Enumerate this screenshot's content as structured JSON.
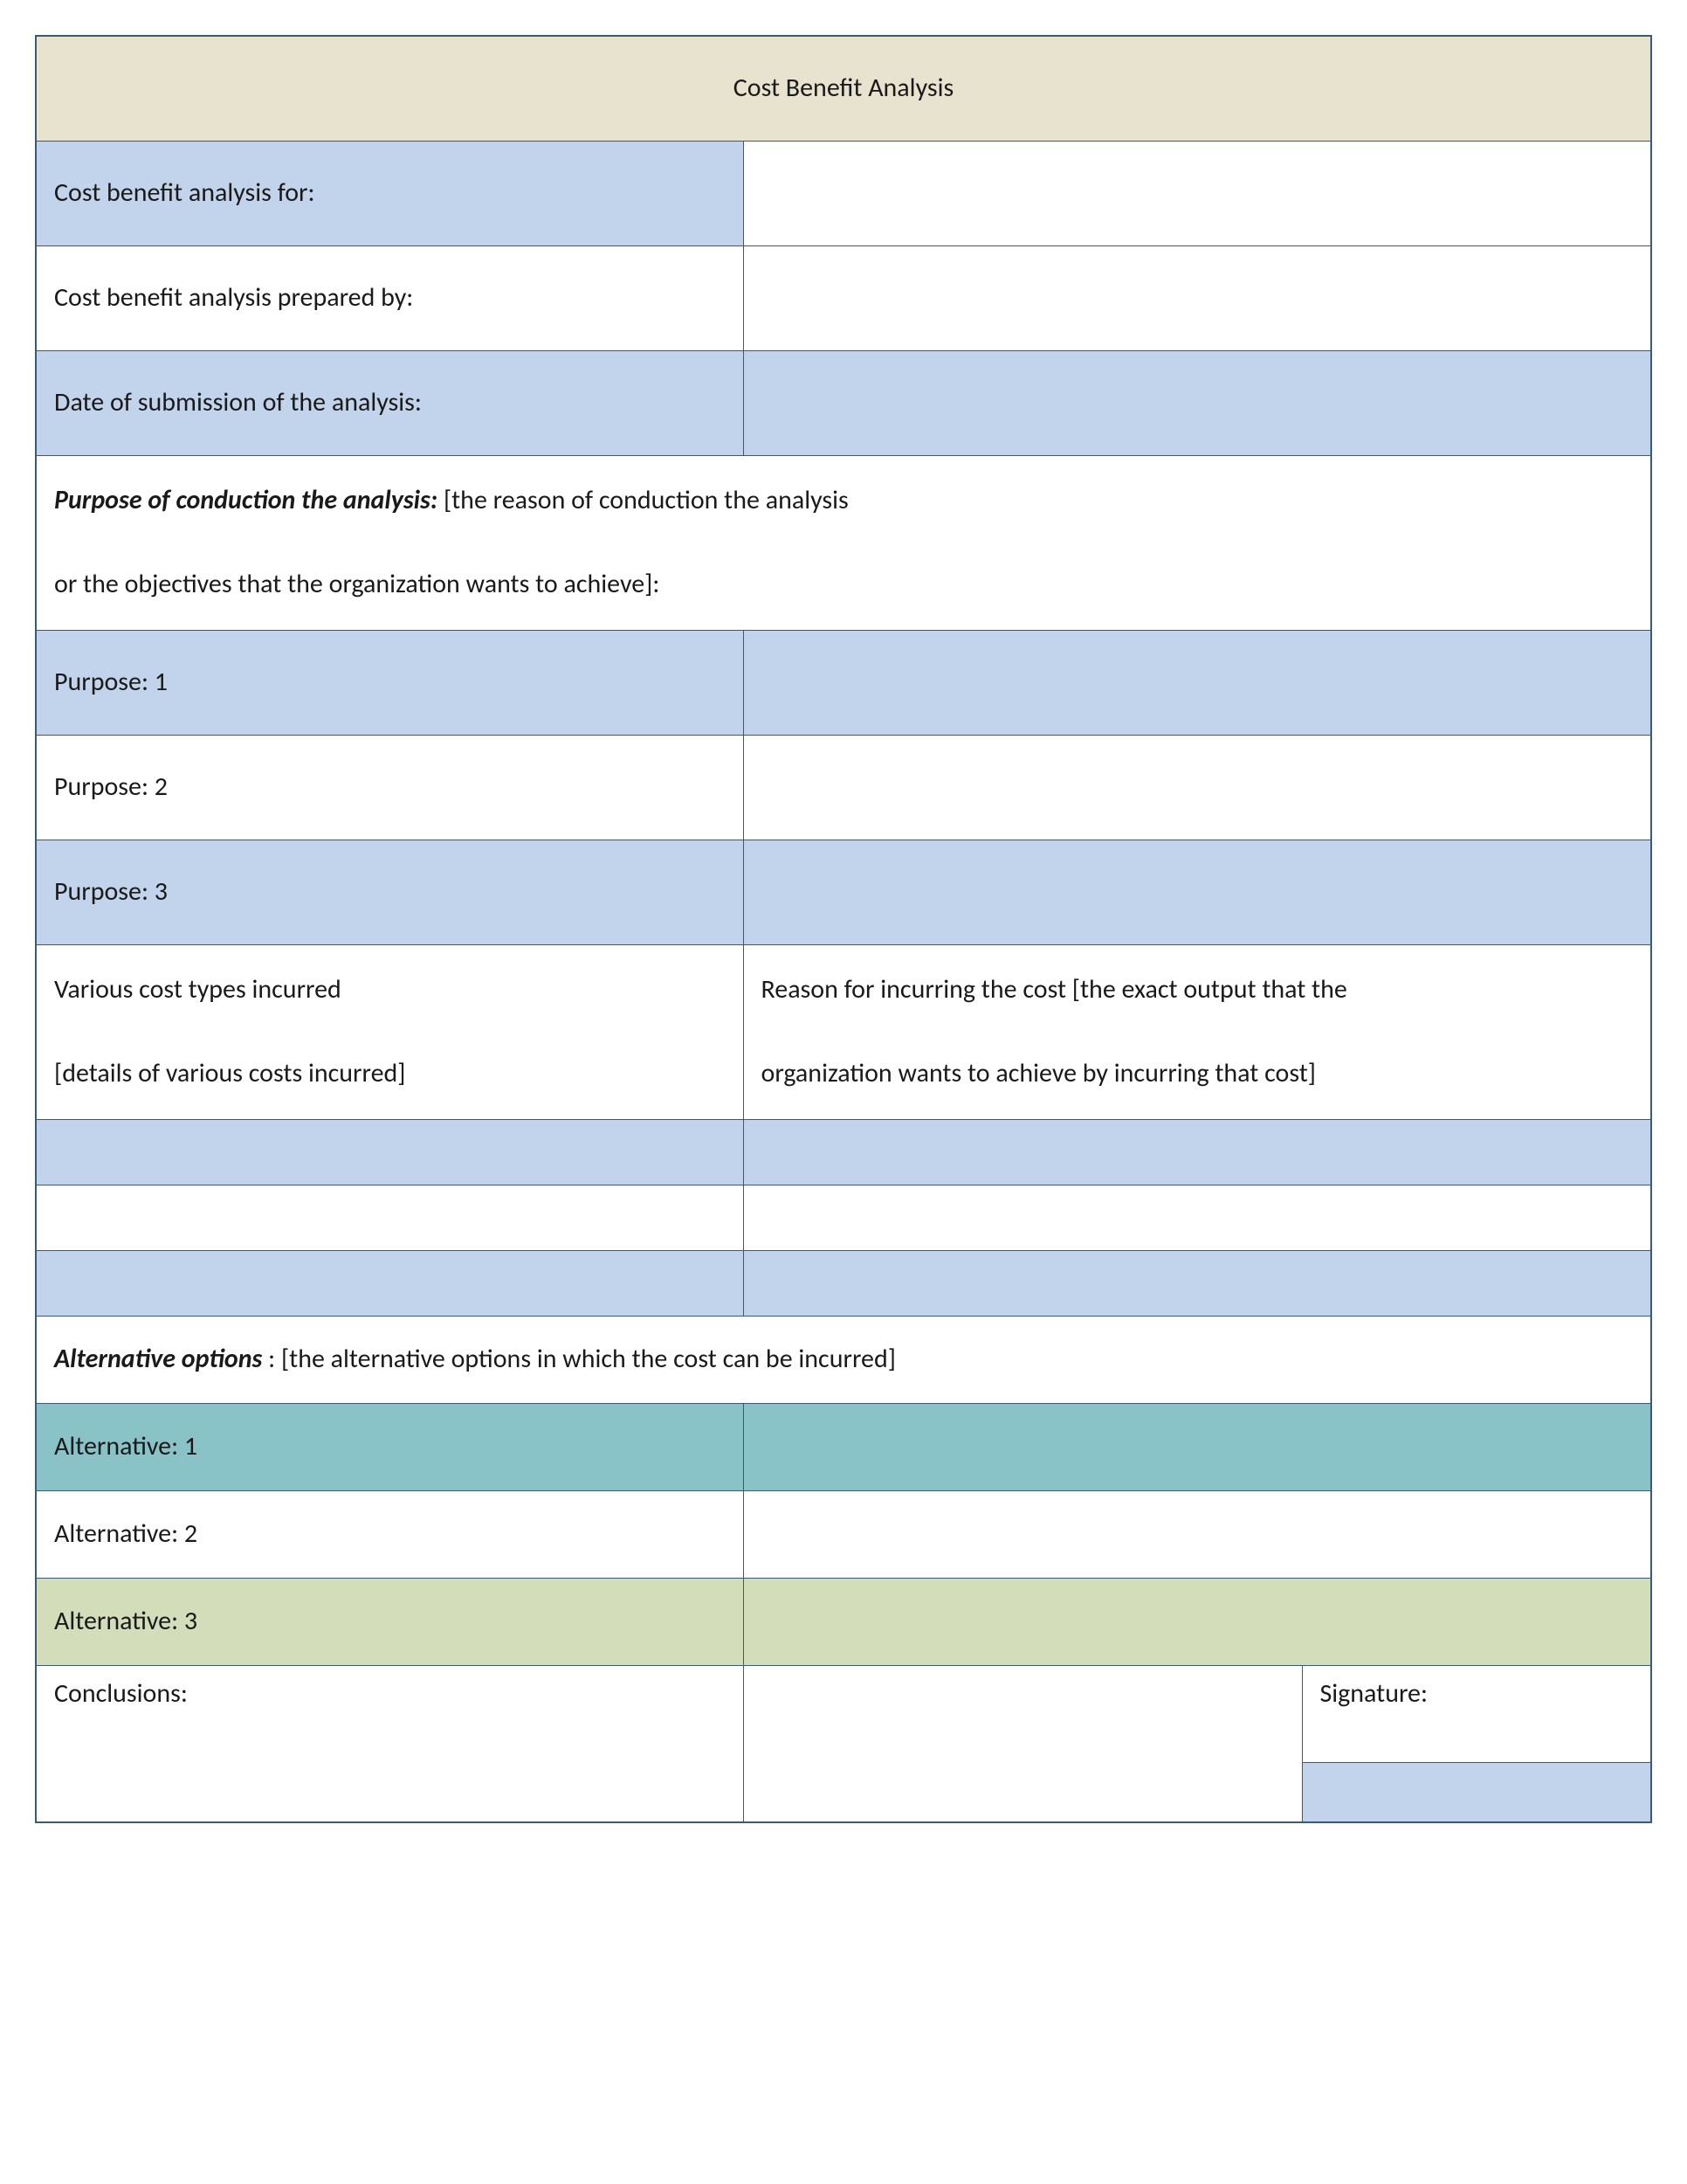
{
  "colors": {
    "border": "#3b5a7a",
    "title_bg": "#e8e3cf",
    "blue_bg": "#c2d4ec",
    "white_bg": "#ffffff",
    "teal_bg": "#89c3c8",
    "olive_bg": "#d3ddba",
    "text": "#1a1a1a"
  },
  "title": "Cost Benefit Analysis",
  "header_rows": [
    {
      "label": "Cost benefit analysis for:",
      "value": "",
      "bg": "#c2d4ec",
      "value_bg": "#ffffff"
    },
    {
      "label": "Cost benefit analysis prepared by:",
      "value": "",
      "bg": "#ffffff",
      "value_bg": "#ffffff"
    },
    {
      "label": "Date of submission of the analysis:",
      "value": "",
      "bg": "#c2d4ec",
      "value_bg": "#c2d4ec"
    }
  ],
  "purpose_section": {
    "heading_bold": "Purpose of conduction the analysis:",
    "heading_rest": " [the reason of conduction the analysis",
    "heading_line2": " or the objectives that the organization wants to achieve]:",
    "rows": [
      {
        "label": "Purpose: 1",
        "value": "",
        "bg": "#c2d4ec"
      },
      {
        "label": "Purpose: 2",
        "value": "",
        "bg": "#ffffff"
      },
      {
        "label": "Purpose: 3",
        "value": "",
        "bg": "#c2d4ec"
      }
    ]
  },
  "cost_section": {
    "left_line1": "Various cost types incurred",
    "left_line2": "[details of various costs incurred]",
    "right_line1": "Reason for incurring the cost [the exact output that the",
    "right_line2": "organization wants to achieve by incurring that cost]",
    "blank_rows": [
      {
        "bg": "#c2d4ec"
      },
      {
        "bg": "#ffffff"
      },
      {
        "bg": "#c2d4ec"
      }
    ]
  },
  "alt_section": {
    "heading_bold": "Alternative options",
    "heading_rest": " : [the alternative options in which the cost can be incurred]",
    "rows": [
      {
        "label": "Alternative: 1",
        "value": "",
        "bg": "#89c3c8"
      },
      {
        "label": "Alternative: 2",
        "value": "",
        "bg": "#ffffff"
      },
      {
        "label": "Alternative: 3",
        "value": "",
        "bg": "#d3ddba"
      }
    ]
  },
  "footer": {
    "conclusions_label": "Conclusions:",
    "signature_label": "Signature:",
    "sig_box_bg": "#c2d4ec"
  },
  "layout": {
    "col1_width": 810,
    "col2_width": 640,
    "col3_width": 400,
    "title_fontsize": 60,
    "body_fontsize": 30
  }
}
